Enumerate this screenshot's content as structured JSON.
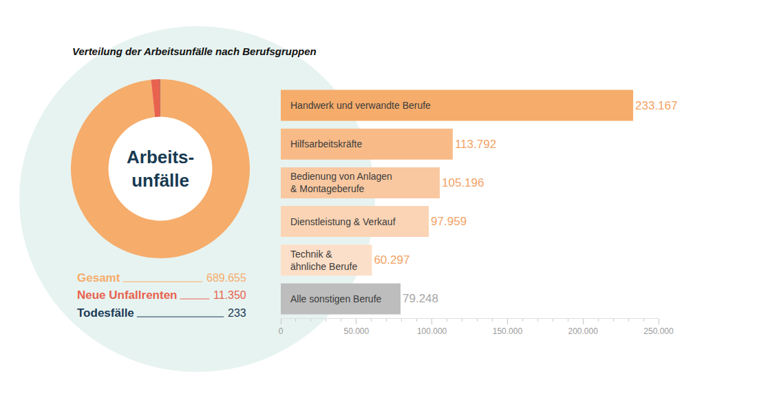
{
  "title": "Verteilung der Arbeitsunfälle nach Berufsgruppen",
  "chart_data": [
    {
      "type": "pie",
      "center_label": "Arbeits-\nunfälle",
      "categories": [
        "Gesamt",
        "Neue Unfallrenten",
        "Todesfälle"
      ],
      "values": [
        689655,
        11350,
        233
      ],
      "value_labels": [
        "689.655",
        "11.350",
        "233"
      ],
      "colors": [
        "#f6ac6b",
        "#e8624e",
        "#1b3a57"
      ],
      "legend": "bottom"
    },
    {
      "type": "bar",
      "orientation": "horizontal",
      "categories": [
        "Handwerk und verwandte Berufe",
        "Hilfsarbeitskräfte",
        "Bedienung von Anlagen\n& Montageberufe",
        "Dienstleistung & Verkauf",
        "Technik &\nähnliche Berufe",
        "Alle sonstigen Berufe"
      ],
      "values": [
        233167,
        113792,
        105196,
        97959,
        60297,
        79248
      ],
      "value_labels": [
        "233.167",
        "113.792",
        "105.196",
        "97.959",
        "60.297",
        "79.248"
      ],
      "colors": [
        "#f6ac6b",
        "#f8bb88",
        "#f9c8a0",
        "#fbd4b5",
        "#fcdfc8",
        "#bdbdbd"
      ],
      "xlim": [
        0,
        250000
      ],
      "xticks": [
        0,
        {
          "value": 50000,
          "label": "50.000"
        },
        {
          "value": 100000,
          "label": "100.000"
        },
        {
          "value": 150000,
          "label": "150.000"
        },
        {
          "value": 200000,
          "label": "200.000"
        },
        {
          "value": 250000,
          "label": "250.000"
        }
      ],
      "data_labels": true,
      "grid": false
    }
  ]
}
